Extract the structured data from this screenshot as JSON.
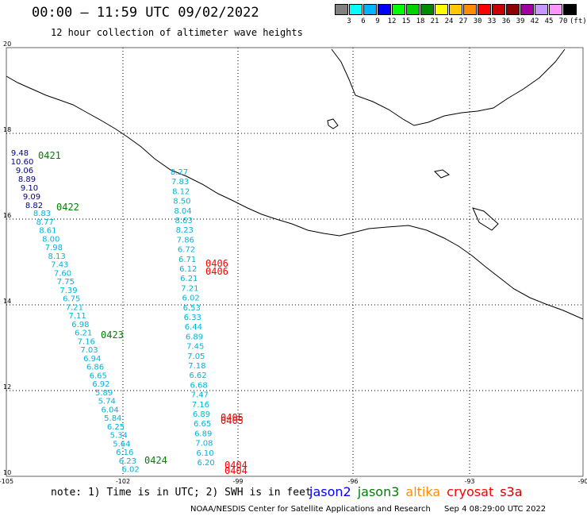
{
  "header": {
    "title": "00:00 — 11:59 UTC 09/02/2022",
    "subtitle": "12 hour collection of altimeter wave heights"
  },
  "scale": {
    "labels": [
      "3",
      "6",
      "9",
      "12",
      "15",
      "18",
      "21",
      "24",
      "27",
      "30",
      "33",
      "36",
      "39",
      "42",
      "45",
      "70"
    ],
    "unit": "(ft)",
    "colors": [
      "#808080",
      "#00ffff",
      "#00b4ff",
      "#0000ff",
      "#00ff00",
      "#00d200",
      "#008c00",
      "#ffff00",
      "#ffc800",
      "#ff8c00",
      "#ff0000",
      "#c80000",
      "#8c0000",
      "#a000a0",
      "#c896ff",
      "#ff96ff",
      "#000000"
    ]
  },
  "axes": {
    "lat_labels": [
      "20",
      "18",
      "16",
      "14",
      "12",
      "10"
    ],
    "lon_labels": [
      "-105",
      "-102",
      "-99",
      "-96",
      "-93",
      "-90"
    ]
  },
  "passes": [
    {
      "color": "#00008b",
      "values": [
        "9.48",
        "10.60",
        "9.06",
        "8.89",
        "9.10",
        "9.09",
        "8.82"
      ]
    },
    {
      "color": "#00b4dc",
      "values": [
        "8.83",
        "8.77",
        "8.61",
        "8.00",
        "7.98",
        "8.13",
        "7.43",
        "7.60",
        "7.75",
        "7.39",
        "6.75",
        "7.21",
        "7.11",
        "6.98",
        "6.21",
        "7.16",
        "7.03",
        "6.94",
        "6.86",
        "6.65",
        "6.92",
        "5.89",
        "5.74",
        "6.04",
        "5.84",
        "6.25",
        "5.34",
        "5.64",
        "6.16",
        "6.23",
        "6.02"
      ]
    },
    {
      "color": "#00b4dc",
      "values": [
        "8.27",
        "7.83",
        "8.12",
        "8.50",
        "8.04",
        "8.63",
        "8.23",
        "7.86",
        "6.72",
        "6.71",
        "6.12",
        "6.21",
        "7.21",
        "6.02",
        "6.53",
        "6.33",
        "6.44",
        "6.89",
        "7.45",
        "7.05",
        "7.18",
        "6.62",
        "6.68",
        "7.47",
        "7.16",
        "6.89",
        "6.65",
        "6.89",
        "7.08",
        "6.10",
        "6.20"
      ]
    }
  ],
  "time_labels": [
    {
      "text": "0421",
      "color": "#008000"
    },
    {
      "text": "0422",
      "color": "#008000"
    },
    {
      "text": "0423",
      "color": "#008000"
    },
    {
      "text": "0424",
      "color": "#008000"
    },
    {
      "text": "0406",
      "color": "#ff0000"
    },
    {
      "text": "0406",
      "color": "#ff0000"
    },
    {
      "text": "0405",
      "color": "#ff0000"
    },
    {
      "text": "0405",
      "color": "#ff0000"
    },
    {
      "text": "0404",
      "color": "#ff0000"
    },
    {
      "text": "0404",
      "color": "#ff0000"
    }
  ],
  "note": "note: 1) Time is in UTC; 2) SWH is in feet",
  "legend": [
    {
      "label": "jason2",
      "color": "#0000ff"
    },
    {
      "label": "jason3",
      "color": "#008000"
    },
    {
      "label": "altika",
      "color": "#ff8c00"
    },
    {
      "label": "cryosat",
      "color": "#ff0000"
    },
    {
      "label": "s3a",
      "color": "#c80000"
    }
  ],
  "footer": {
    "org": "NOAA/NESDIS Center for Satellite Applications and Research",
    "timestamp": "Sep  4 08:29:00 UTC 2022"
  }
}
